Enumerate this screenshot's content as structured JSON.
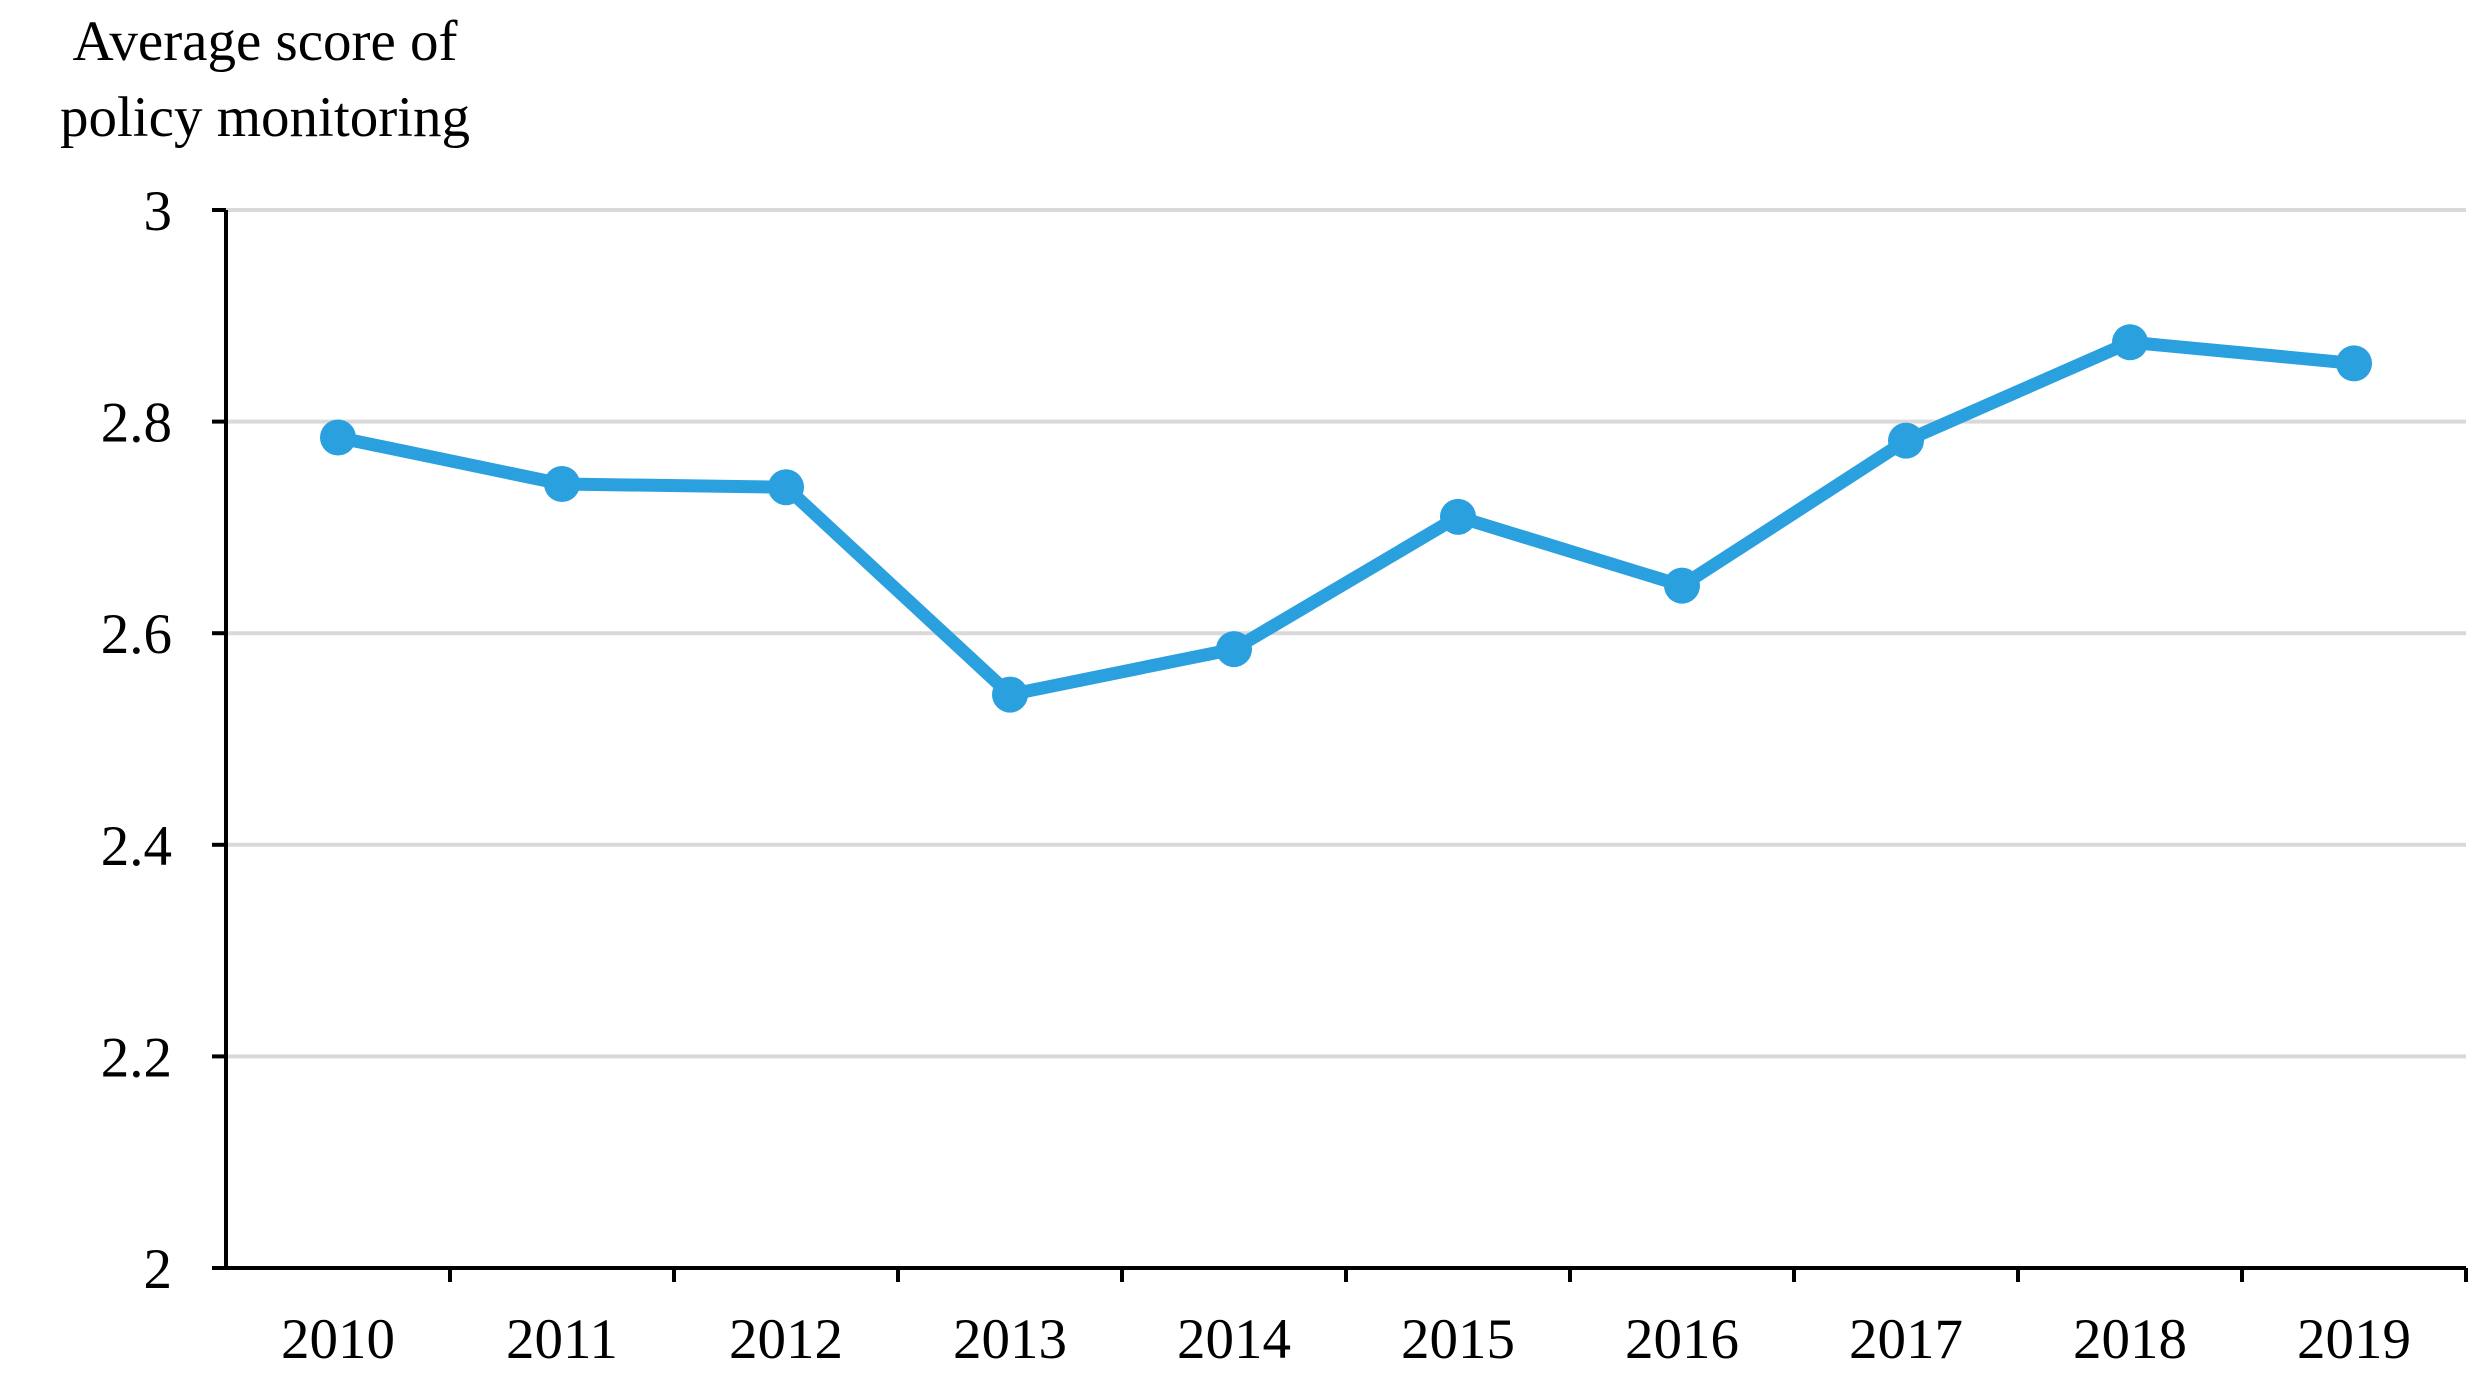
{
  "chart_data": {
    "type": "line",
    "title": "",
    "xlabel": "",
    "ylabel": [
      "Average score of",
      "policy monitoring"
    ],
    "categories": [
      "2010",
      "2011",
      "2012",
      "2013",
      "2014",
      "2015",
      "2016",
      "2017",
      "2018",
      "2019"
    ],
    "series": [
      {
        "values": [
          2.785,
          2.741,
          2.738,
          2.542,
          2.585,
          2.71,
          2.645,
          2.782,
          2.875,
          2.855
        ],
        "color": "#2aa0de",
        "marker": "circle"
      }
    ],
    "ylim": [
      2,
      3
    ],
    "yticks": [
      "2",
      "2.2",
      "2.4",
      "2.6",
      "2.8",
      "3"
    ],
    "grid": true,
    "gridColor": "#d9d9d9",
    "legend": "none"
  }
}
